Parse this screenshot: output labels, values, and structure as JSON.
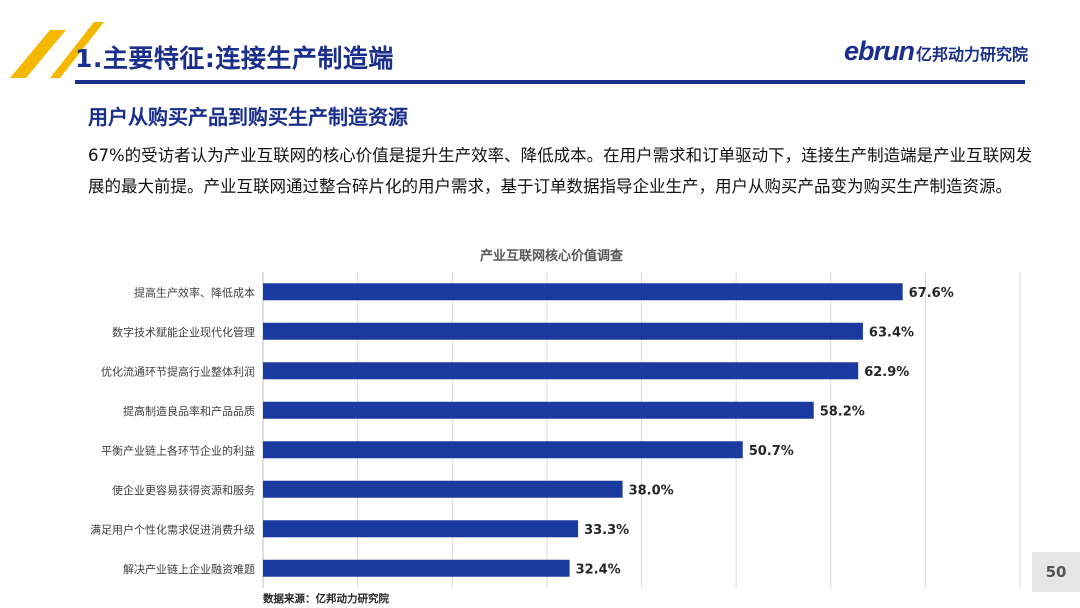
{
  "header": {
    "title": "1.主要特征:连接生产制造端",
    "logo_en": "ebrun",
    "logo_cn": "亿邦动力研究院"
  },
  "section": {
    "subtitle": "用户从购买产品到购买生产制造资源",
    "paragraph": "67%的受访者认为产业互联网的核心价值是提升生产效率、降低成本。在用户需求和订单驱动下，连接生产制造端是产业互联网发展的最大前提。产业互联网通过整合碎片化的用户需求，基于订单数据指导企业生产，用户从购买产品变为购买生产制造资源。"
  },
  "page_number": "50",
  "colors": {
    "brand": "#1a2f8c",
    "bar": "#1a3aa0",
    "accent": "#f5b800"
  },
  "chart_data": {
    "type": "bar",
    "orientation": "horizontal",
    "title": "产业互联网核心价值调查",
    "categories": [
      "提高生产效率、降低成本",
      "数字技术赋能企业现代化管理",
      "优化流通环节提高行业整体利润",
      "提高制造良品率和产品品质",
      "平衡产业链上各环节企业的利益",
      "使企业更容易获得资源和服务",
      "满足用户个性化需求促进消费升级",
      "解决产业链上企业融资难题"
    ],
    "values": [
      67.6,
      63.4,
      62.9,
      58.2,
      50.7,
      38.0,
      33.3,
      32.4
    ],
    "value_labels": [
      "67.6%",
      "63.4%",
      "62.9%",
      "58.2%",
      "50.7%",
      "38.0%",
      "33.3%",
      "32.4%"
    ],
    "xlim": [
      0,
      80
    ],
    "grid": "vertical",
    "source": "数据来源：亿邦动力研究院"
  }
}
